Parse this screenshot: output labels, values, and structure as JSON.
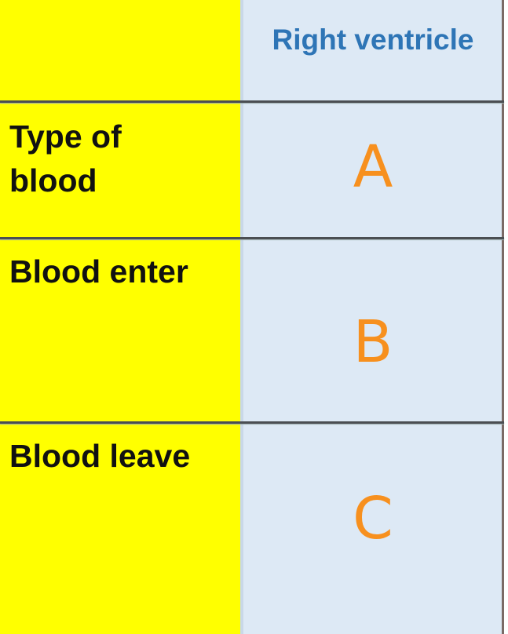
{
  "table": {
    "header": {
      "column": "Right ventricle"
    },
    "rows": [
      {
        "label": "Type of blood",
        "answer": "A"
      },
      {
        "label": "Blood enter",
        "answer": "B"
      },
      {
        "label": "Blood leave",
        "answer": "C"
      }
    ]
  },
  "colors": {
    "label_column": "#ffff00",
    "answer_column": "#dde9f5",
    "header_text": "#2e75b6",
    "answer_text": "#f7901e"
  }
}
